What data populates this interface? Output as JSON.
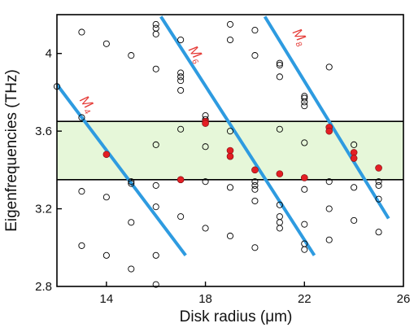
{
  "chart_data": {
    "type": "scatter",
    "xlabel": "Disk radius (μm)",
    "ylabel": "Eigenfrequencies (THz)",
    "xlim": [
      12,
      26
    ],
    "ylim": [
      2.8,
      4.2
    ],
    "x_ticks": [
      "14",
      "18",
      "22",
      "26"
    ],
    "y_ticks": [
      "2.8",
      "3.2",
      "3.6",
      "4"
    ],
    "x_tick_values": [
      14,
      18,
      22,
      26
    ],
    "y_tick_values": [
      2.8,
      3.2,
      3.6,
      4.0
    ],
    "band": {
      "ymin": 3.35,
      "ymax": 3.65,
      "color": "#e6f7d9"
    },
    "band_edge_color": "#000000",
    "mode_lines": [
      {
        "label": "M",
        "sub": "4",
        "x": [
          12,
          17.2
        ],
        "y": [
          3.84,
          2.96
        ]
      },
      {
        "label": "M",
        "sub": "6",
        "x": [
          16.2,
          22.4
        ],
        "y": [
          4.19,
          2.96
        ]
      },
      {
        "label": "M",
        "sub": "8",
        "x": [
          20.4,
          25.4
        ],
        "y": [
          4.19,
          3.15
        ]
      }
    ],
    "mode_line_color": "#2e9be0",
    "mode_label_color": "#e53935",
    "mode_label_positions": [
      {
        "x": 12.9,
        "y": 3.76
      },
      {
        "x": 17.3,
        "y": 4.02
      },
      {
        "x": 21.5,
        "y": 4.11
      }
    ],
    "series": [
      {
        "marker": "open-circle",
        "color": "#000000",
        "points": [
          [
            12,
            3.83
          ],
          [
            13,
            4.11
          ],
          [
            13,
            3.67
          ],
          [
            13,
            3.29
          ],
          [
            13,
            3.01
          ],
          [
            14,
            4.05
          ],
          [
            14,
            3.26
          ],
          [
            14,
            2.96
          ],
          [
            15,
            3.99
          ],
          [
            15,
            3.34
          ],
          [
            15,
            3.33
          ],
          [
            15,
            3.13
          ],
          [
            15,
            2.89
          ],
          [
            16,
            4.15
          ],
          [
            16,
            4.13
          ],
          [
            16,
            4.1
          ],
          [
            16,
            3.92
          ],
          [
            16,
            3.53
          ],
          [
            16,
            3.32
          ],
          [
            16,
            3.21
          ],
          [
            16,
            2.96
          ],
          [
            16,
            2.81
          ],
          [
            17,
            4.07
          ],
          [
            17,
            3.9
          ],
          [
            17,
            3.88
          ],
          [
            17,
            3.86
          ],
          [
            17,
            3.81
          ],
          [
            17,
            3.61
          ],
          [
            17,
            3.35
          ],
          [
            17,
            3.16
          ],
          [
            18,
            3.68
          ],
          [
            18,
            3.66
          ],
          [
            18,
            3.52
          ],
          [
            18,
            3.34
          ],
          [
            18,
            3.1
          ],
          [
            19,
            4.15
          ],
          [
            19,
            4.07
          ],
          [
            19,
            3.6
          ],
          [
            19,
            3.31
          ],
          [
            19,
            3.06
          ],
          [
            20,
            4.12
          ],
          [
            20,
            3.99
          ],
          [
            20,
            3.34
          ],
          [
            20,
            3.32
          ],
          [
            20,
            3.3
          ],
          [
            20,
            3.24
          ],
          [
            20,
            3.0
          ],
          [
            21,
            3.95
          ],
          [
            21,
            3.94
          ],
          [
            21,
            3.88
          ],
          [
            21,
            3.61
          ],
          [
            21,
            3.22
          ],
          [
            21,
            3.16
          ],
          [
            21,
            3.13
          ],
          [
            21,
            3.1
          ],
          [
            22,
            3.78
          ],
          [
            22,
            3.77
          ],
          [
            22,
            3.75
          ],
          [
            22,
            3.73
          ],
          [
            22,
            3.54
          ],
          [
            22,
            3.3
          ],
          [
            22,
            3.12
          ],
          [
            22,
            3.02
          ],
          [
            22,
            2.99
          ],
          [
            23,
            3.93
          ],
          [
            23,
            3.62
          ],
          [
            23,
            3.34
          ],
          [
            23,
            3.2
          ],
          [
            23,
            3.04
          ],
          [
            24,
            3.53
          ],
          [
            24,
            3.31
          ],
          [
            24,
            3.14
          ],
          [
            25,
            3.34
          ],
          [
            25,
            3.32
          ],
          [
            25,
            3.25
          ],
          [
            25,
            3.08
          ]
        ]
      },
      {
        "marker": "filled-circle",
        "color": "#e31e24",
        "points": [
          [
            14,
            3.48
          ],
          [
            17,
            3.35
          ],
          [
            18,
            3.65
          ],
          [
            18,
            3.64
          ],
          [
            19,
            3.5
          ],
          [
            19,
            3.47
          ],
          [
            20,
            3.4
          ],
          [
            21,
            3.38
          ],
          [
            22,
            3.36
          ],
          [
            23,
            3.62
          ],
          [
            23,
            3.6
          ],
          [
            24,
            3.49
          ],
          [
            24,
            3.46
          ],
          [
            25,
            3.41
          ]
        ]
      }
    ]
  }
}
